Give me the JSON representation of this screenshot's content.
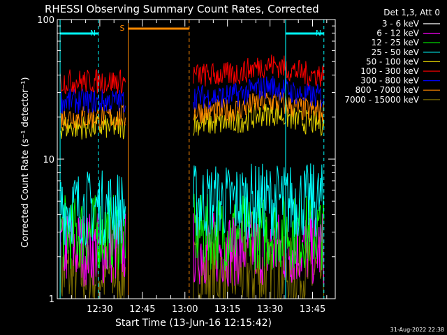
{
  "chart_data": {
    "type": "line",
    "title": "RHESSI Observing Summary Count Rates, Corrected",
    "xlabel": "Start Time (13-Jun-16 12:15:42)",
    "ylabel": "Corrected Count Rate (s⁻¹ detector⁻¹)",
    "yscale": "log",
    "ylim": [
      1,
      100
    ],
    "y_ticks": [
      "1",
      "10",
      "100"
    ],
    "x_range_minutes": [
      "12:15",
      "13:53"
    ],
    "x_ticks": [
      "12:30",
      "12:45",
      "13:00",
      "13:15",
      "13:30",
      "13:45"
    ],
    "legend_title": "Det 1,3, Att 0",
    "legend_position": "right",
    "series": [
      {
        "name": "3 - 6 keV",
        "color": "#000000"
      },
      {
        "name": "6 - 12 keV",
        "color": "#ff00ff"
      },
      {
        "name": "12 - 25 keV",
        "color": "#00ff00"
      },
      {
        "name": "25 - 50 keV",
        "color": "#00ffff"
      },
      {
        "name": "50 - 100 keV",
        "color": "#e0d000"
      },
      {
        "name": "100 - 300 keV",
        "color": "#ff0000"
      },
      {
        "name": "300 - 800 keV",
        "color": "#0000ff"
      },
      {
        "name": "800 - 7000 keV",
        "color": "#ff8800"
      },
      {
        "name": "7000 - 15000 keV",
        "color": "#807000"
      }
    ],
    "series_levels": {
      "segments": [
        {
          "from": "12:16",
          "to": "12:39"
        },
        {
          "from": "13:03",
          "to": "13:49"
        }
      ],
      "levels": [
        {
          "series": "100 - 300 keV",
          "seg1": 36,
          "seg2": 40
        },
        {
          "series": "300 - 800 keV",
          "seg1": 26,
          "seg2": 28
        },
        {
          "series": "800 - 7000 keV",
          "seg1": 20,
          "seg2": 22
        },
        {
          "series": "50 - 100 keV",
          "seg1": 17,
          "seg2": 18
        },
        {
          "series": "25 - 50 keV",
          "seg1": 4.5,
          "seg2": 5
        },
        {
          "series": "12 - 25 keV",
          "seg1": 3,
          "seg2": 3
        },
        {
          "series": "6 - 12 keV",
          "seg1": 2.3,
          "seg2": 2.3
        },
        {
          "series": "7000 - 15000 keV",
          "seg1": 1.5,
          "seg2": 1.5
        }
      ]
    },
    "annotations": [
      {
        "label": "N",
        "color": "#00ffff",
        "from": "12:16",
        "to": "12:29.5"
      },
      {
        "label": "N",
        "color": "#00ffff",
        "from": "13:35.5",
        "to": "13:49"
      },
      {
        "label": "S",
        "color": "#ff8800",
        "from": "12:40",
        "to": "13:01.5"
      }
    ],
    "footer": "31-Aug-2022 22:38"
  }
}
